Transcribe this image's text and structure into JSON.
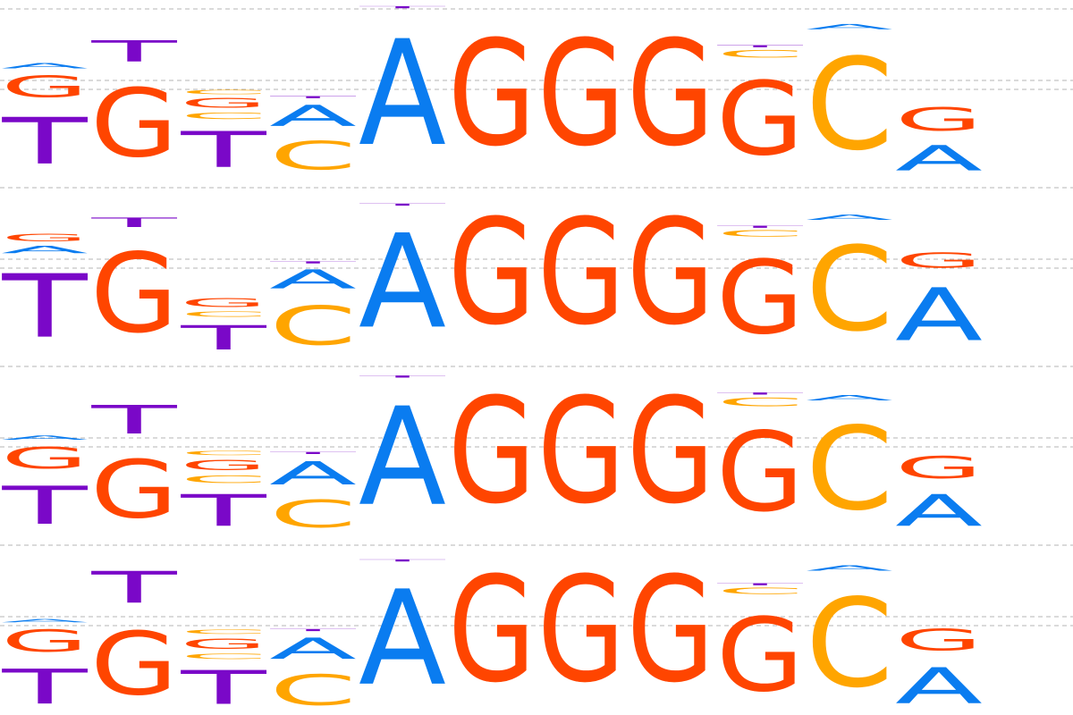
{
  "colors": {
    "A": "#0a7cf0",
    "C": "#ffa500",
    "G": "#ff4500",
    "T": "#7a08c8"
  },
  "logos": [
    {
      "positions": [
        [
          {
            "letter": "T",
            "p": 0.44
          },
          {
            "letter": "G",
            "p": 0.2
          },
          {
            "letter": "A",
            "p": 0.05
          }
        ],
        [
          {
            "letter": "G",
            "p": 0.65
          },
          {
            "letter": "T",
            "p": 0.2
          }
        ],
        [
          {
            "letter": "T",
            "p": 0.34
          },
          {
            "letter": "C",
            "p": 0.06
          },
          {
            "letter": "G",
            "p": 0.09
          },
          {
            "letter": "C",
            "p": 0.04
          }
        ],
        [
          {
            "letter": "C",
            "p": 0.27
          },
          {
            "letter": "A",
            "p": 0.2
          },
          {
            "letter": "T",
            "p": 0.02
          }
        ],
        [
          {
            "letter": "A",
            "p": 1.0
          },
          {
            "letter": "T",
            "p": 0.02
          }
        ],
        [
          {
            "letter": "G",
            "p": 1.0
          }
        ],
        [
          {
            "letter": "G",
            "p": 1.0
          }
        ],
        [
          {
            "letter": "G",
            "p": 1.0
          }
        ],
        [
          {
            "letter": "G",
            "p": 0.7
          },
          {
            "letter": "C",
            "p": 0.07
          },
          {
            "letter": "T",
            "p": 0.02
          }
        ],
        [
          {
            "letter": "C",
            "p": 0.87
          },
          {
            "letter": "A",
            "p": 0.05
          }
        ],
        [
          {
            "letter": "A",
            "p": 0.24
          },
          {
            "letter": "G",
            "p": 0.22
          }
        ]
      ]
    },
    {
      "positions": [
        [
          {
            "letter": "T",
            "p": 0.6
          },
          {
            "letter": "A",
            "p": 0.07
          },
          {
            "letter": "G",
            "p": 0.07
          }
        ],
        [
          {
            "letter": "G",
            "p": 0.75
          },
          {
            "letter": "T",
            "p": 0.09
          }
        ],
        [
          {
            "letter": "T",
            "p": 0.23
          },
          {
            "letter": "C",
            "p": 0.05
          },
          {
            "letter": "G",
            "p": 0.08
          }
        ],
        [
          {
            "letter": "C",
            "p": 0.37
          },
          {
            "letter": "A",
            "p": 0.18
          },
          {
            "letter": "T",
            "p": 0.02
          }
        ],
        [
          {
            "letter": "A",
            "p": 0.89
          },
          {
            "letter": "T",
            "p": 0.02
          }
        ],
        [
          {
            "letter": "G",
            "p": 1.0
          }
        ],
        [
          {
            "letter": "G",
            "p": 1.0
          }
        ],
        [
          {
            "letter": "G",
            "p": 1.0
          }
        ],
        [
          {
            "letter": "G",
            "p": 0.7
          },
          {
            "letter": "C",
            "p": 0.06
          },
          {
            "letter": "T",
            "p": 0.02
          }
        ],
        [
          {
            "letter": "C",
            "p": 0.8
          },
          {
            "letter": "A",
            "p": 0.05
          }
        ],
        [
          {
            "letter": "A",
            "p": 0.5
          },
          {
            "letter": "G",
            "p": 0.14
          }
        ]
      ]
    },
    {
      "positions": [
        [
          {
            "letter": "T",
            "p": 0.36
          },
          {
            "letter": "G",
            "p": 0.2
          },
          {
            "letter": "A",
            "p": 0.04
          }
        ],
        [
          {
            "letter": "G",
            "p": 0.55
          },
          {
            "letter": "T",
            "p": 0.27
          }
        ],
        [
          {
            "letter": "T",
            "p": 0.3
          },
          {
            "letter": "C",
            "p": 0.07
          },
          {
            "letter": "G",
            "p": 0.1
          },
          {
            "letter": "C",
            "p": 0.04
          }
        ],
        [
          {
            "letter": "C",
            "p": 0.26
          },
          {
            "letter": "A",
            "p": 0.22
          },
          {
            "letter": "T",
            "p": 0.02
          }
        ],
        [
          {
            "letter": "A",
            "p": 0.93
          },
          {
            "letter": "T",
            "p": 0.02
          }
        ],
        [
          {
            "letter": "G",
            "p": 1.0
          }
        ],
        [
          {
            "letter": "G",
            "p": 1.0
          }
        ],
        [
          {
            "letter": "G",
            "p": 1.0
          }
        ],
        [
          {
            "letter": "G",
            "p": 0.75
          },
          {
            "letter": "C",
            "p": 0.08
          },
          {
            "letter": "T",
            "p": 0.02
          }
        ],
        [
          {
            "letter": "C",
            "p": 0.79
          },
          {
            "letter": "A",
            "p": 0.05
          }
        ],
        [
          {
            "letter": "A",
            "p": 0.3
          },
          {
            "letter": "G",
            "p": 0.21
          }
        ]
      ]
    },
    {
      "positions": [
        [
          {
            "letter": "T",
            "p": 0.33
          },
          {
            "letter": "G",
            "p": 0.21
          },
          {
            "letter": "A",
            "p": 0.03
          }
        ],
        [
          {
            "letter": "G",
            "p": 0.6
          },
          {
            "letter": "T",
            "p": 0.3
          }
        ],
        [
          {
            "letter": "T",
            "p": 0.32
          },
          {
            "letter": "C",
            "p": 0.05
          },
          {
            "letter": "G",
            "p": 0.1
          },
          {
            "letter": "C",
            "p": 0.04
          }
        ],
        [
          {
            "letter": "C",
            "p": 0.29
          },
          {
            "letter": "A",
            "p": 0.2
          },
          {
            "letter": "T",
            "p": 0.02
          }
        ],
        [
          {
            "letter": "A",
            "p": 0.9
          },
          {
            "letter": "T",
            "p": 0.02
          }
        ],
        [
          {
            "letter": "G",
            "p": 1.0
          }
        ],
        [
          {
            "letter": "G",
            "p": 1.0
          }
        ],
        [
          {
            "letter": "G",
            "p": 1.0
          }
        ],
        [
          {
            "letter": "G",
            "p": 0.7
          },
          {
            "letter": "C",
            "p": 0.06
          },
          {
            "letter": "T",
            "p": 0.02
          }
        ],
        [
          {
            "letter": "C",
            "p": 0.84
          },
          {
            "letter": "A",
            "p": 0.05
          }
        ],
        [
          {
            "letter": "A",
            "p": 0.34
          },
          {
            "letter": "G",
            "p": 0.2
          }
        ]
      ]
    }
  ]
}
